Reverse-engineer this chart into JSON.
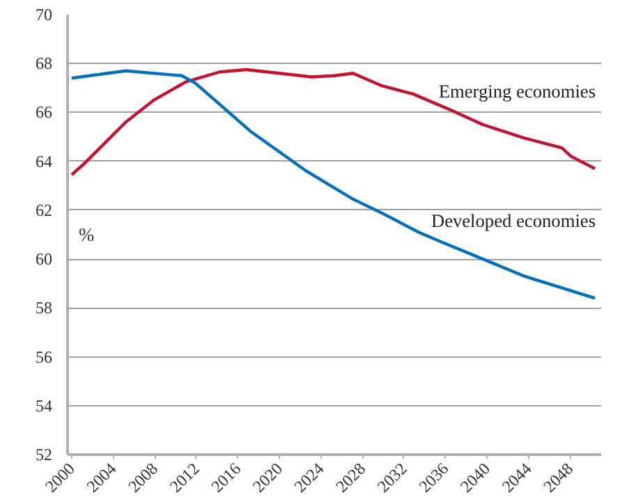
{
  "chart_data": {
    "type": "line",
    "ylabel": "%",
    "xlim": [
      1999.6,
      2051
    ],
    "xticks": [
      2000,
      2004,
      2008,
      2012,
      2016,
      2020,
      2024,
      2028,
      2032,
      2036,
      2040,
      2044,
      2048
    ],
    "ylim": [
      52,
      70
    ],
    "yticks": [
      52,
      54,
      56,
      58,
      60,
      62,
      64,
      66,
      68,
      70
    ],
    "grid": "y",
    "legend": false,
    "series": [
      {
        "name": "Emerging economies",
        "color": "#c8102e",
        "x": [
          2000,
          2001.2,
          2005.2,
          2007.9,
          2011,
          2014.2,
          2016.8,
          2020,
          2023.1,
          2025.3,
          2027.1,
          2029.8,
          2032.9,
          2036.5,
          2039.6,
          2043.6,
          2047.2,
          2048.1,
          2050.4
        ],
        "values": [
          63.45,
          63.9,
          65.6,
          66.5,
          67.25,
          67.65,
          67.75,
          67.6,
          67.45,
          67.5,
          67.6,
          67.1,
          66.75,
          66.1,
          65.5,
          64.95,
          64.55,
          64.2,
          63.7
        ]
      },
      {
        "name": "Developed economies",
        "color": "#0070c0",
        "x": [
          2000,
          2005.2,
          2010.6,
          2011.9,
          2014.6,
          2017.3,
          2022.6,
          2027.1,
          2029.8,
          2033.4,
          2035.6,
          2039.6,
          2043.6,
          2050.4
        ],
        "values": [
          67.4,
          67.7,
          67.5,
          67.2,
          66.2,
          65.2,
          63.6,
          62.45,
          61.9,
          61.1,
          60.7,
          60.0,
          59.3,
          58.4
        ]
      }
    ]
  }
}
